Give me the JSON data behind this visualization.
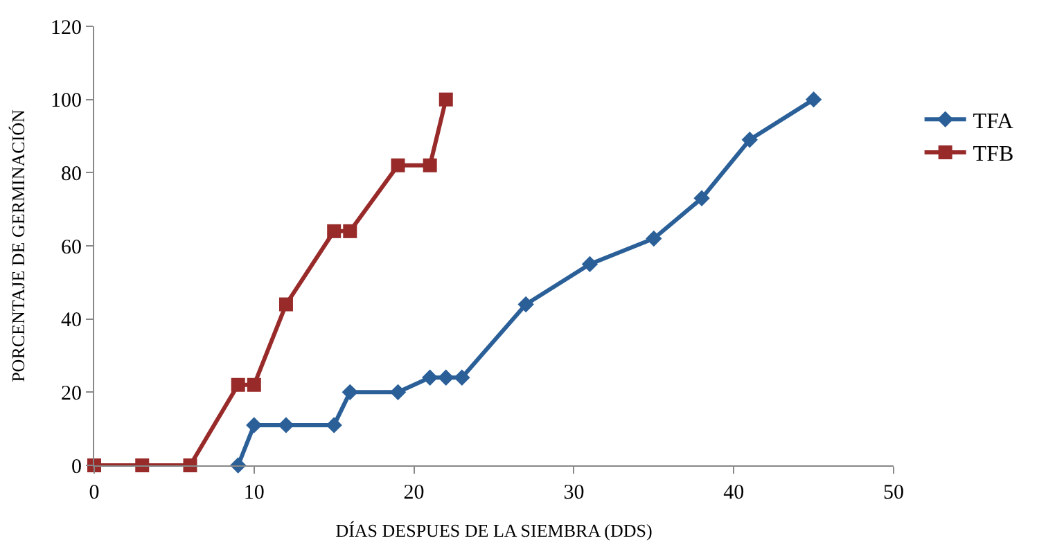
{
  "chart_data": {
    "type": "line",
    "xlabel": "DÍAS DESPUES DE LA SIEMBRA (DDS)",
    "ylabel": "PORCENTAJE DE GERMINACIÓN",
    "xlim": [
      0,
      50
    ],
    "xticks": [
      0,
      10,
      20,
      30,
      40,
      50
    ],
    "ylim": [
      0,
      120
    ],
    "yticks": [
      0,
      20,
      40,
      60,
      80,
      100,
      120
    ],
    "legend": "right",
    "line_style": "solid",
    "series": [
      {
        "name": "TFA",
        "color": "#2a5f98",
        "marker": "diamond",
        "x": [
          9,
          10,
          12,
          15,
          16,
          19,
          21,
          22,
          23,
          27,
          31,
          35,
          38,
          41,
          45
        ],
        "values": [
          0,
          11,
          11,
          11,
          20,
          20,
          24,
          24,
          24,
          44,
          55,
          62,
          73,
          89,
          100
        ]
      },
      {
        "name": "TFB",
        "color": "#982a2a",
        "marker": "square",
        "x": [
          0,
          3,
          6,
          9,
          10,
          12,
          15,
          16,
          19,
          21,
          22
        ],
        "values": [
          0,
          0,
          0,
          22,
          22,
          44,
          64,
          64,
          82,
          82,
          100
        ]
      }
    ]
  }
}
